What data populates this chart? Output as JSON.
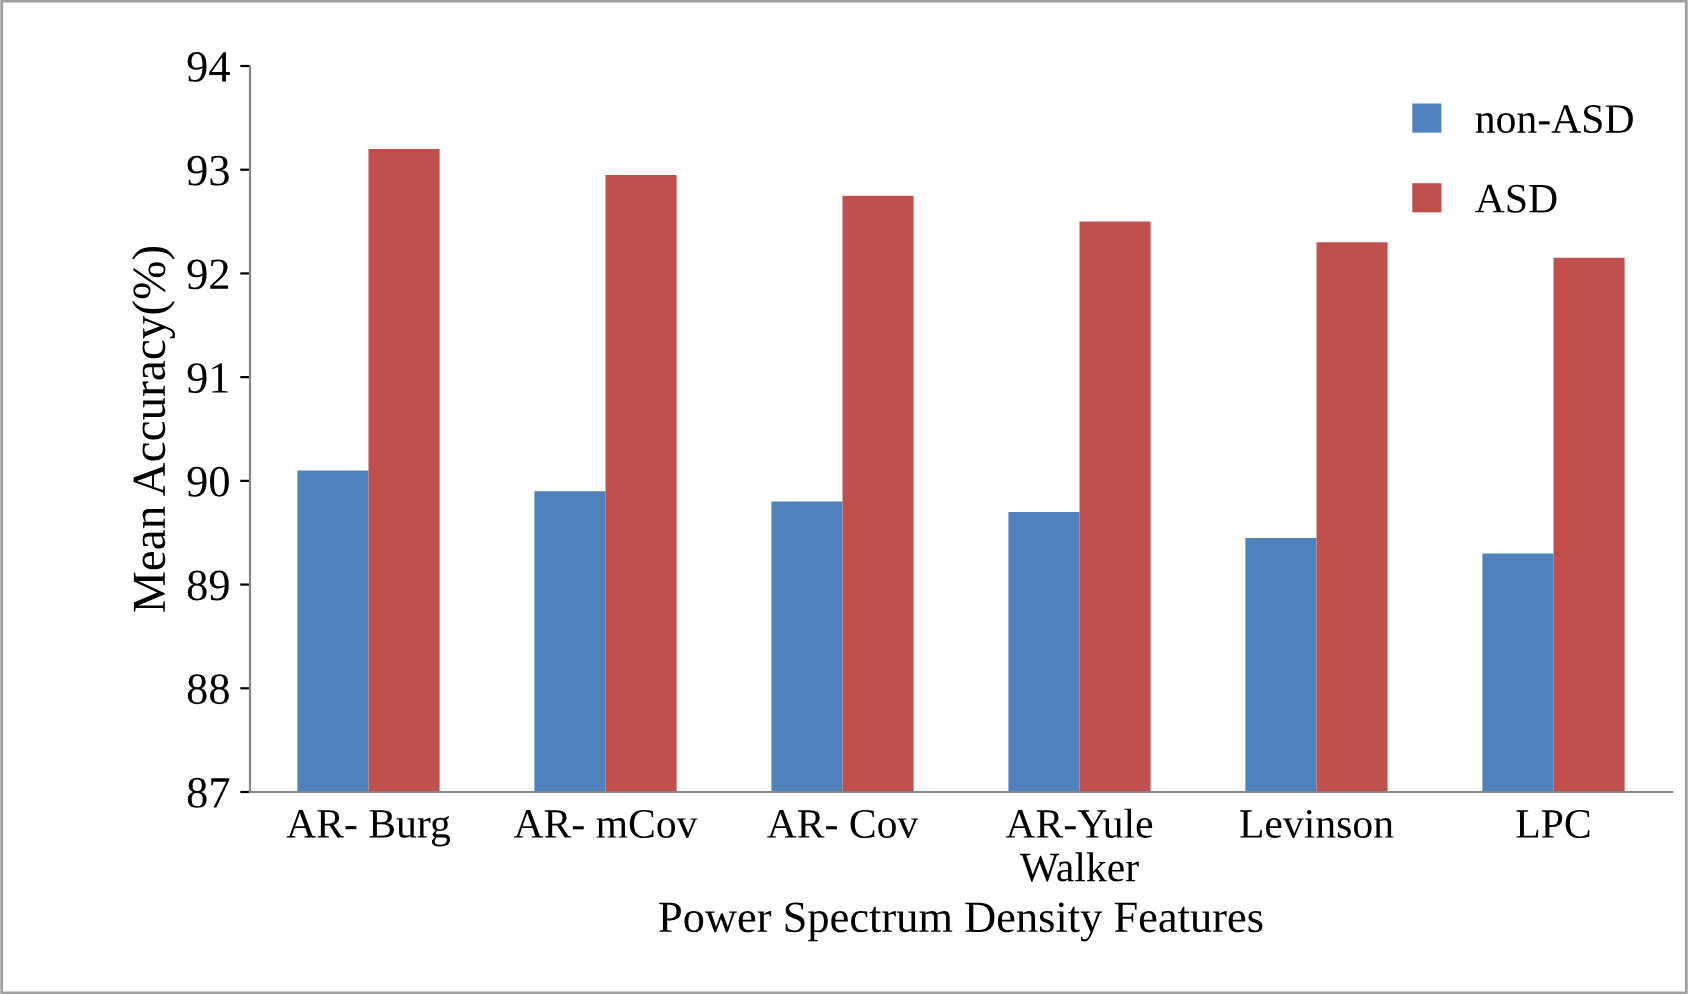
{
  "chart_data": {
    "type": "bar",
    "xlabel": "Power Spectrum Density Features",
    "ylabel": "Mean Accuracy(%)",
    "categories": [
      "AR- Burg",
      "AR- mCov",
      "AR- Cov",
      "AR-Yule Walker",
      "Levinson",
      "LPC"
    ],
    "series": [
      {
        "name": "non-ASD",
        "color": "#4f81bd",
        "values": [
          90.1,
          89.9,
          89.8,
          89.7,
          89.45,
          89.3
        ]
      },
      {
        "name": "ASD",
        "color": "#c0504d",
        "values": [
          93.2,
          92.95,
          92.75,
          92.5,
          92.3,
          92.15
        ]
      }
    ],
    "ylim": [
      87,
      94
    ],
    "yticks": [
      87,
      88,
      89,
      90,
      91,
      92,
      93,
      94
    ],
    "grid": false,
    "legend": "top right"
  }
}
